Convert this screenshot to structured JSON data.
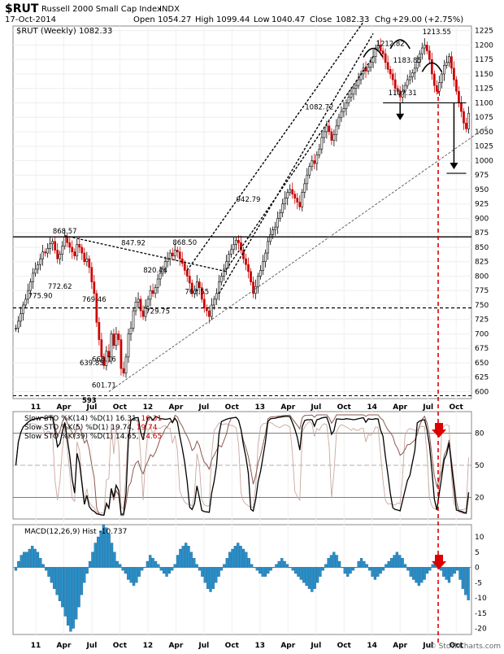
{
  "header": {
    "symbol": "$RUT",
    "name": "Russell 2000 Small Cap Index",
    "exchange": "INDX",
    "date": "17-Oct-2014",
    "open_label": "Open",
    "open": "1054.27",
    "high_label": "High",
    "high": "1099.44",
    "low_label": "Low",
    "low": "1040.47",
    "close_label": "Close",
    "close": "1082.33",
    "chg_label": "Chg",
    "chg": "+29.00 (+2.75%)",
    "watermark": "© StockCharts.com"
  },
  "colors": {
    "up": "#000000",
    "down": "#cc0000",
    "macd_hist": "#2a8fc8",
    "sto_14": "#000000",
    "sto_5": "#c8a8a0",
    "sto_39": "#8a5a50",
    "marker_red": "#dd0000"
  },
  "chart_data": [
    {
      "type": "candlestick",
      "title": "$RUT (Weekly) 1082.33",
      "x_tick_labels": [
        "11",
        "Apr",
        "Jul",
        "Oct",
        "12",
        "Apr",
        "Jul",
        "Oct",
        "13",
        "Apr",
        "Jul",
        "Oct",
        "14",
        "Apr",
        "Jul",
        "Oct"
      ],
      "y_ticks": [
        600,
        625,
        650,
        675,
        700,
        725,
        750,
        775,
        800,
        825,
        850,
        875,
        900,
        925,
        950,
        975,
        1000,
        1025,
        1050,
        1075,
        1100,
        1125,
        1150,
        1175,
        1200,
        1225
      ],
      "ylim": [
        588,
        1233
      ],
      "series_close_weekly": [
        710,
        722,
        735,
        750,
        760,
        775,
        790,
        805,
        812,
        820,
        830,
        842,
        840,
        848,
        856,
        860,
        845,
        830,
        838,
        852,
        868,
        858,
        850,
        842,
        835,
        855,
        850,
        840,
        825,
        830,
        815,
        790,
        770,
        720,
        690,
        660,
        645,
        670,
        660,
        700,
        680,
        700,
        690,
        640,
        632,
        660,
        700,
        710,
        740,
        755,
        760,
        740,
        730,
        748,
        760,
        775,
        770,
        780,
        795,
        805,
        812,
        825,
        830,
        840,
        835,
        845,
        842,
        830,
        822,
        810,
        800,
        788,
        770,
        775,
        790,
        780,
        760,
        745,
        740,
        730,
        750,
        760,
        770,
        790,
        800,
        812,
        825,
        838,
        846,
        855,
        862,
        858,
        845,
        830,
        820,
        808,
        790,
        770,
        782,
        800,
        810,
        825,
        840,
        860,
        872,
        880,
        885,
        900,
        910,
        925,
        935,
        945,
        950,
        942,
        935,
        928,
        920,
        945,
        960,
        975,
        990,
        1000,
        995,
        1010,
        1020,
        1040,
        1050,
        1060,
        1050,
        1035,
        1045,
        1060,
        1075,
        1085,
        1090,
        1100,
        1110,
        1115,
        1125,
        1130,
        1140,
        1150,
        1160,
        1155,
        1162,
        1170,
        1180,
        1195,
        1200,
        1190,
        1185,
        1170,
        1158,
        1150,
        1140,
        1125,
        1120,
        1110,
        1120,
        1130,
        1140,
        1145,
        1152,
        1160,
        1170,
        1185,
        1195,
        1200,
        1190,
        1175,
        1150,
        1130,
        1120,
        1135,
        1150,
        1165,
        1170,
        1180,
        1160,
        1140,
        1120,
        1100,
        1085,
        1065,
        1055,
        1082
      ],
      "annotations": [
        {
          "text": "868.57",
          "price": 868.57
        },
        {
          "text": "775.90",
          "price": 775.9
        },
        {
          "text": "772.62",
          "price": 772.62
        },
        {
          "text": "769.46",
          "price": 769.46
        },
        {
          "text": "639.85",
          "price": 639.85
        },
        {
          "text": "666.16",
          "price": 666.16
        },
        {
          "text": "601.71",
          "price": 601.71
        },
        {
          "text": "593",
          "price": 593
        },
        {
          "text": "847.92",
          "price": 847.92
        },
        {
          "text": "820.44",
          "price": 820.44
        },
        {
          "text": "729.75",
          "price": 729.75
        },
        {
          "text": "868.50",
          "price": 868.5
        },
        {
          "text": "763.55",
          "price": 763.55
        },
        {
          "text": "942.79",
          "price": 942.79
        },
        {
          "text": "1082.72",
          "price": 1082.72
        },
        {
          "text": "1212.82",
          "price": 1212.82
        },
        {
          "text": "1213.55",
          "price": 1213.55
        },
        {
          "text": "1183.85",
          "price": 1183.85
        },
        {
          "text": "1107.31",
          "price": 1107.31
        }
      ],
      "horizontal_lines": [
        {
          "price": 868,
          "style": "solid"
        },
        {
          "price": 745,
          "style": "dashed"
        },
        {
          "price": 593,
          "style": "dashed"
        },
        {
          "price": 1100,
          "style": "solid"
        },
        {
          "price": 978,
          "style": "solid"
        }
      ]
    },
    {
      "type": "line",
      "title": "Slow STO",
      "legend": [
        {
          "label": "Slow STO %K(14) %D(1) 16.31, ",
          "value": "16.31",
          "color": "#000000"
        },
        {
          "label": "Slow STO %K(5) %D(1) 19.74, ",
          "value": "19.74",
          "color": "#c8a8a0"
        },
        {
          "label": "Slow STO %K(39) %D(1) 14.65, ",
          "value": "14.65",
          "color": "#8a5a50"
        }
      ],
      "y_ticks": [
        20,
        50,
        80
      ],
      "ylim": [
        0,
        100
      ],
      "reference_lines": [
        20,
        50,
        80
      ]
    },
    {
      "type": "bar",
      "title": "MACD(12,26,9) Hist -10.737",
      "y_ticks": [
        -20,
        -15,
        -10,
        -5,
        0,
        5,
        10
      ],
      "ylim": [
        -22,
        14
      ],
      "x_tick_labels": [
        "11",
        "Apr",
        "Jul",
        "Oct",
        "12",
        "Apr",
        "Jul",
        "Oct",
        "13",
        "Apr",
        "Jul",
        "Oct",
        "14",
        "Apr",
        "Jul",
        "Oct"
      ],
      "series_hist_weekly": [
        -1,
        2,
        4,
        5,
        5,
        6,
        7,
        6,
        5,
        3,
        1,
        -1,
        -3,
        -5,
        -7,
        -9,
        -11,
        -13,
        -16,
        -19,
        -21,
        -20,
        -17,
        -13,
        -9,
        -5,
        -2,
        2,
        5,
        8,
        10,
        12,
        14,
        13,
        11,
        8,
        5,
        2,
        1,
        -1,
        -2,
        -4,
        -5,
        -6,
        -5,
        -3,
        -1,
        0,
        2,
        4,
        3,
        2,
        1,
        -1,
        -2,
        -3,
        -2,
        -1,
        1,
        4,
        6,
        7,
        8,
        7,
        5,
        3,
        1,
        -1,
        -3,
        -5,
        -7,
        -8,
        -7,
        -5,
        -3,
        -1,
        1,
        3,
        5,
        6,
        7,
        8,
        7,
        6,
        5,
        3,
        1,
        0,
        -1,
        -2,
        -3,
        -3,
        -2,
        -1,
        0,
        1,
        2,
        3,
        2,
        1,
        0,
        -1,
        -2,
        -3,
        -4,
        -5,
        -6,
        -7,
        -8,
        -7,
        -5,
        -3,
        -1,
        1,
        3,
        4,
        5,
        4,
        2,
        0,
        -2,
        -3,
        -2,
        -1,
        0,
        2,
        3,
        2,
        1,
        -1,
        -3,
        -4,
        -3,
        -2,
        -1,
        1,
        2,
        3,
        4,
        5,
        4,
        3,
        1,
        -1,
        -3,
        -4,
        -5,
        -6,
        -5,
        -4,
        -2,
        -1,
        1,
        2,
        1,
        -1,
        -3,
        -4,
        -5,
        -3,
        -2,
        -1,
        -4,
        -7,
        -9,
        -10.737
      ],
      "markers": [
        {
          "text": "arrow-down",
          "panel": "macd"
        }
      ]
    }
  ]
}
